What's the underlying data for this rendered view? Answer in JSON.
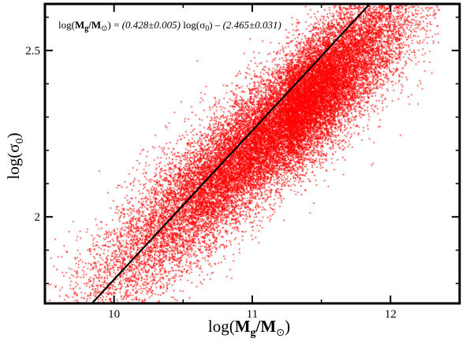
{
  "chart_data": {
    "type": "scatter",
    "title": "",
    "x_axis": {
      "label_main": "log(",
      "label_symbol": "M",
      "label_sub": "g",
      "label_slash": "/",
      "label_sun_symbol": "M",
      "label_sun_sub": "⊙",
      "label_close": ")",
      "range": [
        9.5,
        12.5
      ],
      "ticks": [
        10,
        11,
        12
      ],
      "tick_labels": [
        "10",
        "11",
        "12"
      ]
    },
    "y_axis": {
      "label_main": "log(",
      "label_symbol": "σ",
      "label_sub": "0",
      "label_close": ")",
      "range": [
        1.74,
        2.64
      ],
      "ticks": [
        2,
        2.5
      ],
      "tick_labels": [
        "2",
        "2.5"
      ]
    },
    "annotation": {
      "lhs_open": "log(",
      "lhs_symbol": "M",
      "lhs_sub": "g",
      "lhs_slash": "/",
      "lhs_sun": "M",
      "lhs_sun_sub": "⊙",
      "lhs_close": ") = ",
      "coef": "(0.428±0.005)",
      "mid_open": " log(",
      "mid_symbol": "σ",
      "mid_sub": "0",
      "mid_close": ") – ",
      "const": "(2.465±0.031)"
    },
    "scatter": {
      "color": "#ff0000",
      "description": "dense cloud of galaxies",
      "center": [
        11.25,
        2.3
      ],
      "x_std": 0.55,
      "slope": 0.36,
      "y_residual_std": 0.085,
      "n_points": 26000
    },
    "fit_line": {
      "color": "#000000",
      "x": [
        9.84,
        11.85
      ],
      "y": [
        1.74,
        2.64
      ]
    },
    "grid": false,
    "legend": "none"
  }
}
